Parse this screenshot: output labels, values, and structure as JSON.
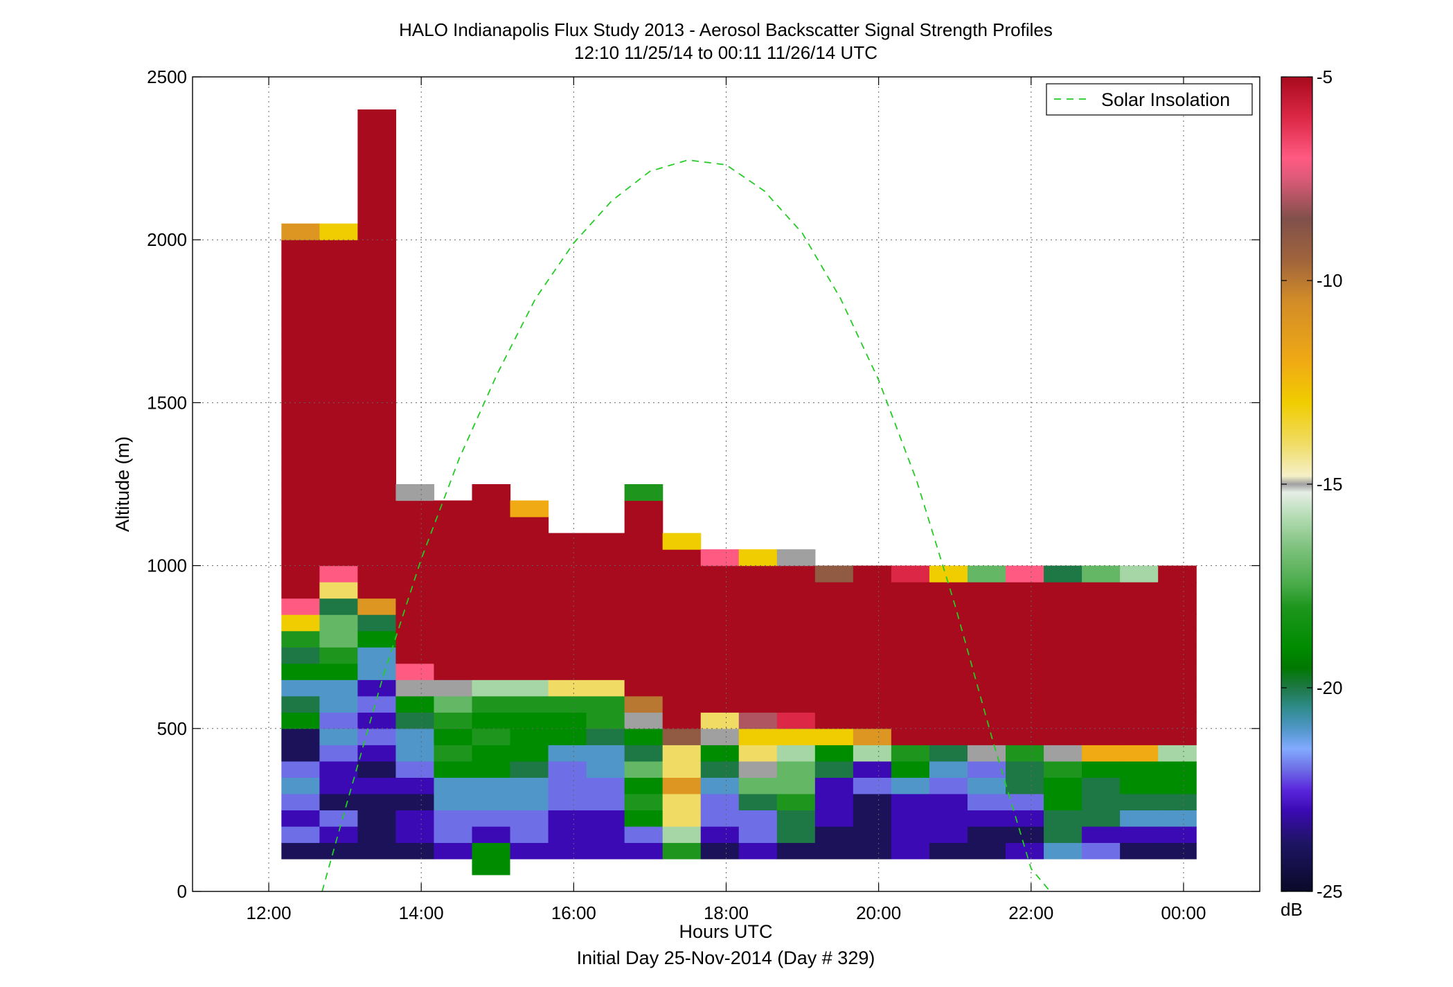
{
  "chart_data": {
    "type": "heatmap",
    "title": "HALO Indianapolis Flux Study 2013 - Aerosol Backscatter Signal Strength Profiles",
    "subtitle": "12:10 11/25/14 to 00:11 11/26/14  UTC",
    "xlabel": "Hours UTC",
    "xlabel2": "Initial Day 25-Nov-2014 (Day # 329)",
    "ylabel": "Altitude (m)",
    "xlim_hours": [
      11.0,
      25.0
    ],
    "ylim": [
      0,
      2500
    ],
    "x_ticks": [
      {
        "value": 12,
        "label": "12:00"
      },
      {
        "value": 14,
        "label": "14:00"
      },
      {
        "value": 16,
        "label": "16:00"
      },
      {
        "value": 18,
        "label": "18:00"
      },
      {
        "value": 20,
        "label": "20:00"
      },
      {
        "value": 22,
        "label": "22:00"
      },
      {
        "value": 24,
        "label": "00:00"
      }
    ],
    "y_ticks": [
      0,
      500,
      1000,
      1500,
      2000,
      2500
    ],
    "grid": true,
    "colorbar": {
      "range": [
        -25,
        -5
      ],
      "ticks": [
        -5,
        -10,
        -15,
        -20,
        -25
      ],
      "tick_labels": [
        "-5",
        "-10",
        "-15",
        "-20",
        "-25"
      ],
      "unit": "dB"
    },
    "legend": {
      "position": "top-right",
      "entries": [
        "Solar Insolation"
      ]
    },
    "bin": {
      "width_hours": 0.5,
      "height_m": 50
    },
    "bin_starts_hours": [
      12.166,
      12.666,
      13.166,
      13.666,
      14.166,
      14.666,
      15.166,
      15.666,
      16.166,
      16.666,
      17.166,
      17.666,
      18.166,
      18.666,
      19.166,
      19.666,
      20.166,
      20.666,
      21.166,
      21.666,
      22.166,
      22.666,
      23.166,
      23.666
    ],
    "columns": [
      [
        -24,
        -22,
        -23,
        -22,
        -21,
        -22,
        -24,
        -24,
        -19,
        -20,
        -21,
        -19,
        -20,
        -18,
        -13,
        -7,
        -5,
        -5,
        -5,
        -5,
        -5,
        -5,
        -5,
        -5,
        -5,
        -5,
        -5,
        -5,
        -5,
        -5,
        -5,
        -5,
        -5,
        -5,
        -5,
        -5,
        -5,
        -5,
        -11
      ],
      [
        -24,
        -23,
        -22,
        -24,
        -23,
        -23,
        -22,
        -21,
        -22,
        -21,
        -21,
        -19,
        -18,
        -17,
        -17,
        -20,
        -14,
        -7,
        -5,
        -5,
        -5,
        -5,
        -5,
        -5,
        -5,
        -5,
        -5,
        -5,
        -5,
        -5,
        -5,
        -5,
        -5,
        -5,
        -5,
        -5,
        -5,
        -5,
        -13
      ],
      [
        -24,
        -24,
        -24,
        -24,
        -23,
        -24,
        -23,
        -22,
        -23,
        -22,
        -23,
        -21,
        -21,
        -19,
        -20,
        -11,
        -5,
        -5,
        -5,
        -5,
        -5,
        -5,
        -5,
        -5,
        -5,
        -5,
        -5,
        -5,
        -5,
        -5,
        -5,
        -5,
        -5,
        -5,
        -5,
        -5,
        -5,
        -5,
        -5,
        -5,
        -5,
        -5,
        -5,
        -5,
        -5,
        -5
      ],
      [
        -24,
        -23,
        -23,
        -24,
        -23,
        -22,
        -21,
        -21,
        -20,
        -19,
        -15,
        -7,
        -5,
        -5,
        -5,
        -5,
        -5,
        -5,
        -5,
        -5,
        -5,
        -5,
        -15
      ],
      [
        -23,
        -22,
        -22,
        -21,
        -21,
        -19,
        -18,
        -19,
        -18,
        -17,
        -15,
        -5,
        -5,
        -5,
        -5,
        -5,
        -5,
        -5,
        -5,
        -5,
        -5,
        -5
      ],
      [
        -19,
        -23,
        -22,
        -21,
        -21,
        -19,
        -19,
        -18,
        -19,
        -18,
        -16,
        -5,
        -5,
        -5,
        -5,
        -5,
        -5,
        -5,
        -5,
        -5,
        -5,
        -5,
        -5
      ],
      [
        -23,
        -22,
        -22,
        -21,
        -21,
        -20,
        -19,
        -19,
        -19,
        -18,
        -16,
        -5,
        -5,
        -5,
        -5,
        -5,
        -5,
        -5,
        -5,
        -5,
        -5,
        -12
      ],
      [
        -23,
        -23,
        -23,
        -22,
        -22,
        -22,
        -21,
        -19,
        -19,
        -18,
        -14,
        -5,
        -5,
        -5,
        -5,
        -5,
        -5,
        -5,
        -5,
        -5
      ],
      [
        -23,
        -23,
        -23,
        -22,
        -22,
        -21,
        -21,
        -20,
        -18,
        -18,
        -14,
        -5,
        -5,
        -5,
        -5,
        -5,
        -5,
        -5,
        -5,
        -5
      ],
      [
        -23,
        -22,
        -19,
        -18,
        -19,
        -17,
        -20,
        -19,
        -15,
        -10,
        -5,
        -5,
        -5,
        -5,
        -5,
        -5,
        -5,
        -5,
        -5,
        -5,
        -5,
        -5,
        -18
      ],
      [
        -18,
        -16,
        -14,
        -14,
        -11,
        -14,
        -14,
        -9,
        -5,
        -5,
        -5,
        -5,
        -5,
        -5,
        -5,
        -5,
        -5,
        -5,
        -5,
        -13
      ],
      [
        -24,
        -23,
        -22,
        -22,
        -21,
        -20,
        -19,
        -15,
        -14,
        -5,
        -5,
        -5,
        -5,
        -5,
        -5,
        -5,
        -5,
        -5,
        -7
      ],
      [
        -23,
        -22,
        -22,
        -20,
        -17,
        -15,
        -14,
        -13,
        -8,
        -5,
        -5,
        -5,
        -5,
        -5,
        -5,
        -5,
        -5,
        -5,
        -13
      ],
      [
        -24,
        -20,
        -20,
        -18,
        -17,
        -17,
        -16,
        -13,
        -6,
        -5,
        -5,
        -5,
        -5,
        -5,
        -5,
        -5,
        -5,
        -5,
        -15
      ],
      [
        -24,
        -24,
        -23,
        -23,
        -23,
        -20,
        -19,
        -13,
        -5,
        -5,
        -5,
        -5,
        -5,
        -5,
        -5,
        -5,
        -5,
        -9
      ],
      [
        -24,
        -24,
        -24,
        -24,
        -22,
        -23,
        -16,
        -11,
        -5,
        -5,
        -5,
        -5,
        -5,
        -5,
        -5,
        -5,
        -5,
        -5
      ],
      [
        -23,
        -23,
        -23,
        -23,
        -21,
        -19,
        -18,
        -5,
        -5,
        -5,
        -5,
        -5,
        -5,
        -5,
        -5,
        -5,
        -5,
        -6
      ],
      [
        -24,
        -23,
        -23,
        -23,
        -22,
        -21,
        -20,
        -5,
        -5,
        -5,
        -5,
        -5,
        -5,
        -5,
        -5,
        -5,
        -5,
        -13
      ],
      [
        -24,
        -24,
        -23,
        -22,
        -21,
        -22,
        -15,
        -5,
        -5,
        -5,
        -5,
        -5,
        -5,
        -5,
        -5,
        -5,
        -5,
        -17
      ],
      [
        -23,
        -24,
        -23,
        -22,
        -20,
        -20,
        -18,
        -5,
        -5,
        -5,
        -5,
        -5,
        -5,
        -5,
        -5,
        -5,
        -5,
        -7
      ],
      [
        -21,
        -20,
        -20,
        -19,
        -19,
        -18,
        -15,
        -5,
        -5,
        -5,
        -5,
        -5,
        -5,
        -5,
        -5,
        -5,
        -5,
        -20
      ],
      [
        -22,
        -23,
        -20,
        -20,
        -20,
        -19,
        -12,
        -5,
        -5,
        -5,
        -5,
        -5,
        -5,
        -5,
        -5,
        -5,
        -5,
        -17
      ],
      [
        -24,
        -23,
        -21,
        -20,
        -19,
        -19,
        -12,
        -5,
        -5,
        -5,
        -5,
        -5,
        -5,
        -5,
        -5,
        -5,
        -5,
        -16
      ],
      [
        -24,
        -23,
        -21,
        -20,
        -19,
        -19,
        -16,
        -5,
        -5,
        -5,
        -5,
        -5,
        -5,
        -5,
        -5,
        -5,
        -5,
        -5
      ]
    ],
    "extra_bins": [
      {
        "x_hours": 14.666,
        "y_m": 50,
        "value": -19
      }
    ],
    "solar_insolation": {
      "series_name": "Solar Insolation",
      "x_hours": [
        12.7,
        13.0,
        13.5,
        14.0,
        14.5,
        15.0,
        15.5,
        16.0,
        16.5,
        17.0,
        17.5,
        18.0,
        18.5,
        19.0,
        19.5,
        20.0,
        20.5,
        21.0,
        21.5,
        22.0,
        22.25
      ],
      "y_m": [
        0,
        250,
        660,
        1020,
        1330,
        1590,
        1820,
        1990,
        2120,
        2210,
        2245,
        2230,
        2150,
        2020,
        1820,
        1570,
        1260,
        880,
        460,
        70,
        0
      ],
      "color": "#22cc22"
    },
    "colormap_stops": [
      {
        "v": -25,
        "c": "#0a0a28"
      },
      {
        "v": -23.8,
        "c": "#1e1464"
      },
      {
        "v": -23.0,
        "c": "#3c0ab4"
      },
      {
        "v": -22.5,
        "c": "#5a28dc"
      },
      {
        "v": -22.0,
        "c": "#6e6ee6"
      },
      {
        "v": -21.5,
        "c": "#82aaff"
      },
      {
        "v": -21.0,
        "c": "#5096c8"
      },
      {
        "v": -20.5,
        "c": "#2f8c8c"
      },
      {
        "v": -20.0,
        "c": "#1e7846"
      },
      {
        "v": -19.5,
        "c": "#007800"
      },
      {
        "v": -19.0,
        "c": "#008c00"
      },
      {
        "v": -18.0,
        "c": "#1e961e"
      },
      {
        "v": -17.5,
        "c": "#46aa46"
      },
      {
        "v": -16.5,
        "c": "#82c382"
      },
      {
        "v": -15.8,
        "c": "#b4dcb4"
      },
      {
        "v": -15.2,
        "c": "#e6eee6"
      },
      {
        "v": -15.0,
        "c": "#a0a0a0"
      },
      {
        "v": -14.8,
        "c": "#f5f0c8"
      },
      {
        "v": -14.0,
        "c": "#f0dc64"
      },
      {
        "v": -13.0,
        "c": "#f0cd00"
      },
      {
        "v": -12.0,
        "c": "#f0aa14"
      },
      {
        "v": -10.5,
        "c": "#d28c28"
      },
      {
        "v": -9.5,
        "c": "#a0643c"
      },
      {
        "v": -8.5,
        "c": "#80504a"
      },
      {
        "v": -7.5,
        "c": "#dc5a78"
      },
      {
        "v": -7.0,
        "c": "#ff5a82"
      },
      {
        "v": -6.0,
        "c": "#dc2846"
      },
      {
        "v": -5.0,
        "c": "#a80a1e"
      }
    ]
  }
}
